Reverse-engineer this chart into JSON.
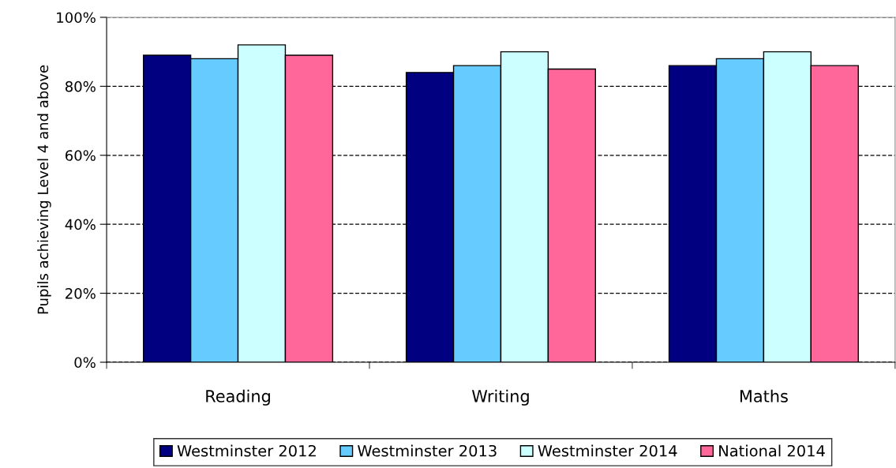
{
  "chart_data": {
    "type": "bar",
    "ylabel": "Pupils achieving Level 4 and above",
    "categories": [
      "Reading",
      "Writing",
      "Maths"
    ],
    "series": [
      {
        "name": "Westminster 2012",
        "color": "#000080",
        "values": [
          89,
          84,
          86
        ]
      },
      {
        "name": "Westminster 2013",
        "color": "#66ccff",
        "values": [
          88,
          86,
          88
        ]
      },
      {
        "name": "Westminster 2014",
        "color": "#ccffff",
        "values": [
          92,
          90,
          90
        ]
      },
      {
        "name": "National 2014",
        "color": "#ff6699",
        "values": [
          89,
          85,
          86
        ]
      }
    ],
    "ylim": [
      0,
      100
    ],
    "yticks": [
      {
        "value": 0,
        "label": "0%"
      },
      {
        "value": 20,
        "label": "20%"
      },
      {
        "value": 40,
        "label": "40%"
      },
      {
        "value": 60,
        "label": "60%"
      },
      {
        "value": 80,
        "label": "80%"
      },
      {
        "value": 100,
        "label": "100%"
      }
    ],
    "grid": "y",
    "legend": "bottom"
  }
}
